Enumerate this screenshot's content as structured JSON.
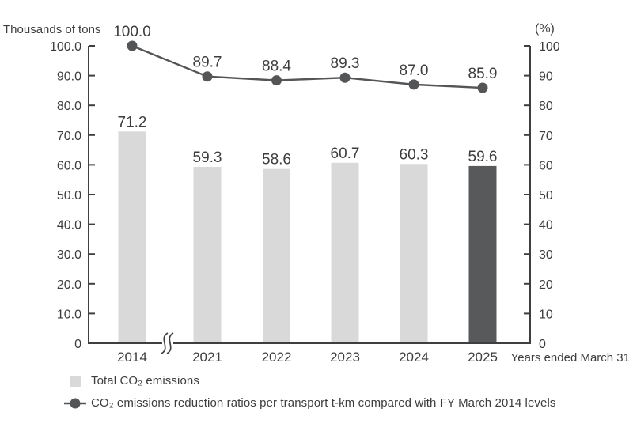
{
  "colors": {
    "bar": "#d9d9d9",
    "bar_highlight": "#58595b",
    "line": "#545557",
    "marker": "#545557",
    "axis": "#3f3f41",
    "text": "#3d3d3f"
  },
  "legend": {
    "items": [
      {
        "type": "bar",
        "label": "Total CO₂ emissions"
      },
      {
        "type": "line",
        "label": "CO₂ emissions reduction ratios per transport t-km compared with FY March 2014 levels"
      }
    ]
  },
  "chart_data": {
    "type": "bar+line",
    "categories": [
      "2014",
      "2021",
      "2022",
      "2023",
      "2024",
      "2025"
    ],
    "series": [
      {
        "name": "Total CO2 emissions",
        "type": "bar",
        "axis": "left",
        "values": [
          71.2,
          59.3,
          58.6,
          60.7,
          60.3,
          59.6
        ],
        "highlight_category": "2025"
      },
      {
        "name": "CO2 emissions reduction ratios per transport t-km compared with FY March 2014 levels",
        "type": "line",
        "axis": "right",
        "values": [
          100.0,
          89.7,
          88.4,
          89.3,
          87.0,
          85.9
        ]
      }
    ],
    "left_axis": {
      "title": "Thousands of tons",
      "range": [
        0,
        100
      ],
      "ticks": [
        "0",
        "10.0",
        "20.0",
        "30.0",
        "40.0",
        "50.0",
        "60.0",
        "70.0",
        "80.0",
        "90.0",
        "100.0"
      ]
    },
    "right_axis": {
      "title": "(%)",
      "range": [
        0,
        100
      ],
      "ticks": [
        "0",
        "10",
        "20",
        "30",
        "40",
        "50",
        "60",
        "70",
        "80",
        "90",
        "100"
      ]
    },
    "x_axis": {
      "note": "Years ended March 31",
      "break_after": "2014"
    },
    "value_labels": true,
    "grid": false,
    "legend_position": "bottom-left"
  }
}
